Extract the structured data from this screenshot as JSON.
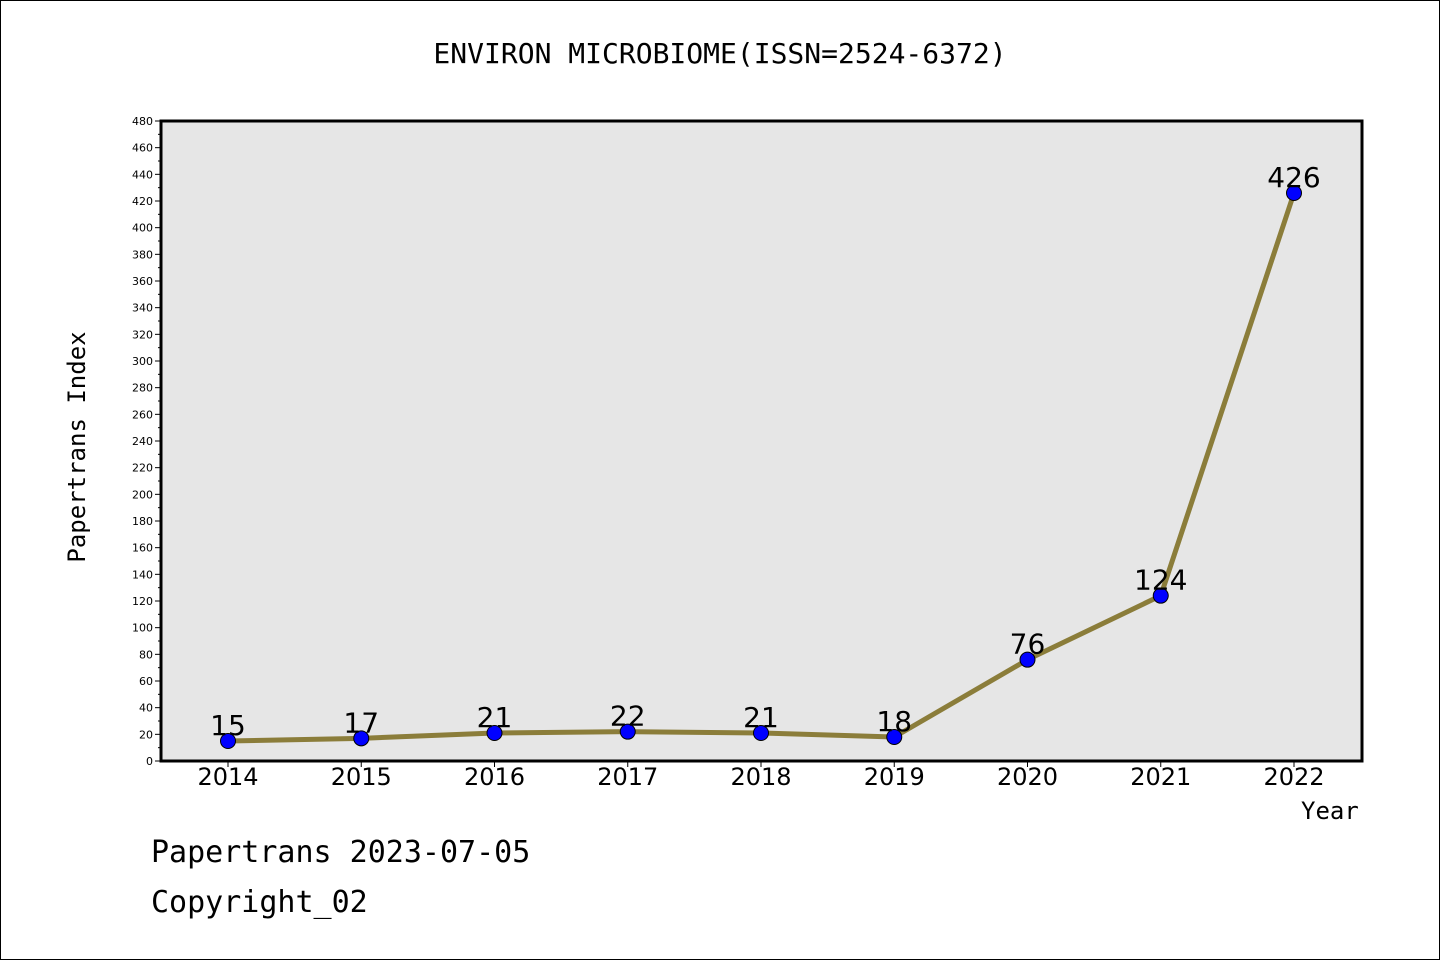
{
  "chart_data": {
    "type": "line",
    "title": "ENVIRON MICROBIOME(ISSN=2524-6372)",
    "xlabel": "Year",
    "ylabel": "Papertrans Index",
    "categories": [
      "2014",
      "2015",
      "2016",
      "2017",
      "2018",
      "2019",
      "2020",
      "2021",
      "2022"
    ],
    "series": [
      {
        "values": [
          15,
          17,
          21,
          22,
          21,
          18,
          76,
          124,
          426
        ]
      }
    ],
    "data_labels": [
      "15",
      "17",
      "21",
      "22",
      "21",
      "18",
      "76",
      "124",
      "426"
    ],
    "ylim": [
      0,
      480
    ],
    "yticks": [
      0,
      20,
      40,
      60,
      80,
      100,
      120,
      140,
      160,
      180,
      200,
      220,
      240,
      260,
      280,
      300,
      320,
      340,
      360,
      380,
      400,
      420,
      440,
      460,
      480
    ],
    "grid": false,
    "colors": {
      "line": "#8b7d3a",
      "marker": "#0000ff",
      "plot_background": "#e6e6e6"
    }
  },
  "footer": {
    "date_line": "Papertrans 2023-07-05",
    "copyright": "Copyright_02"
  }
}
